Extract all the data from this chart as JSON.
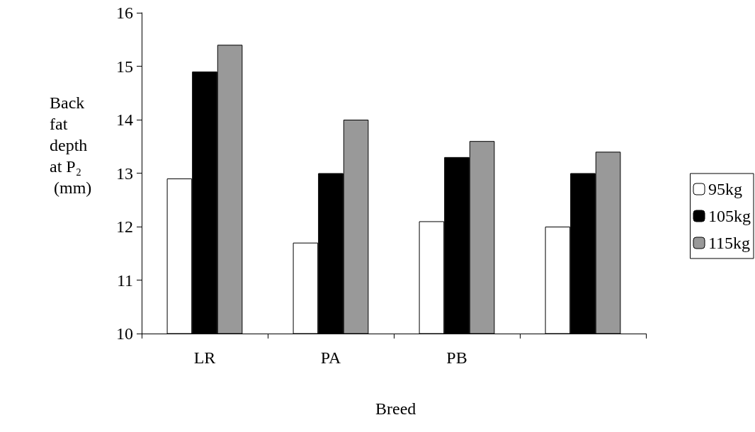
{
  "chart_data": {
    "type": "bar",
    "xlabel": "Breed",
    "ylabel": "Back fat depth at P₂ (mm)",
    "categories": [
      "LR",
      "PA",
      "PB",
      null
    ],
    "series": [
      {
        "name": "95kg",
        "color": "#ffffff",
        "values": [
          12.9,
          11.7,
          12.1,
          12.0
        ]
      },
      {
        "name": "105kg",
        "color": "#000000",
        "values": [
          14.9,
          13.0,
          13.3,
          13.0
        ]
      },
      {
        "name": "115kg",
        "color": "#999999",
        "values": [
          15.4,
          14.0,
          13.6,
          13.4
        ]
      }
    ],
    "ylim": [
      10,
      16
    ],
    "yticks": [
      10,
      11,
      12,
      13,
      14,
      15,
      16
    ],
    "grid": false,
    "legend": "right"
  }
}
